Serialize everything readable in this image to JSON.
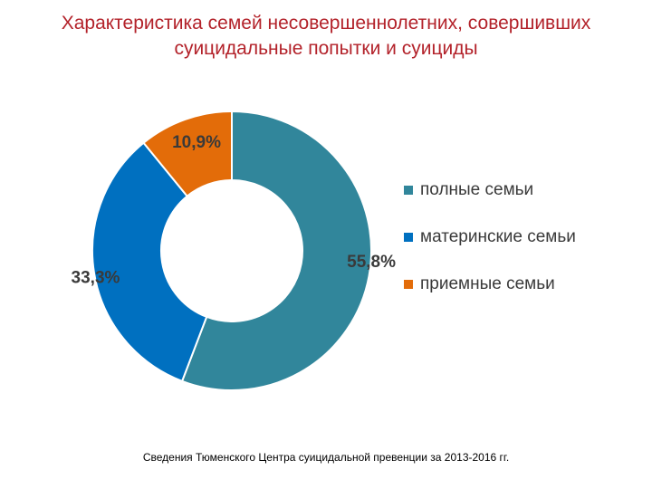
{
  "title": {
    "line1": "Характеристика семей несовершеннолетних, совершивших",
    "line2": "суицидальные попытки и суициды"
  },
  "chart_data": {
    "type": "pie",
    "donut": true,
    "start_angle_deg": 0,
    "direction": "clockwise",
    "legend_position": "right",
    "slices": [
      {
        "name": "полные семьи",
        "value": 55.8,
        "label": "55,8%",
        "color": "#31869b"
      },
      {
        "name": "материнские семьи",
        "value": 33.3,
        "label": "33,3%",
        "color": "#0070c0"
      },
      {
        "name": "приемные семьи",
        "value": 10.9,
        "label": "10,9%",
        "color": "#e36c09"
      }
    ]
  },
  "source": "Сведения Тюменского Центра суицидальной превенции за 2013-2016 гг."
}
